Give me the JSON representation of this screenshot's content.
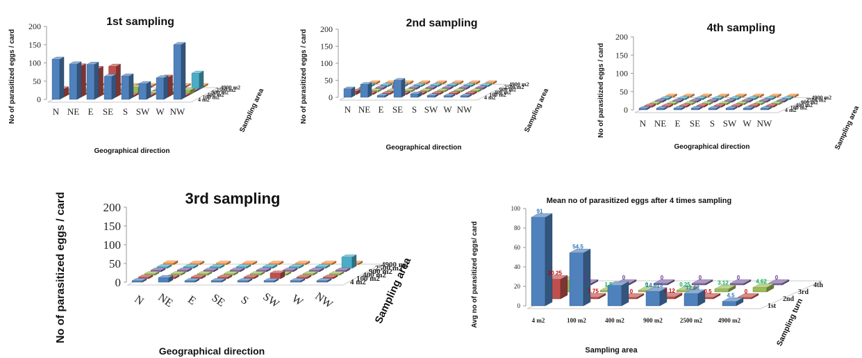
{
  "chart_data": [
    {
      "type": "bar",
      "title": "1st sampling",
      "ylabel": "No of parasitized eggs / card",
      "xlabel": "Geographical direction",
      "zlabel": "Sampling area",
      "ylim": [
        0,
        200
      ],
      "yticks": [
        "0",
        "50",
        "100",
        "150",
        "200"
      ],
      "categories": [
        "N",
        "NE",
        "E",
        "SE",
        "S",
        "SW",
        "W",
        "NW"
      ],
      "series": [
        {
          "name": "4 m2",
          "values": [
            110,
            97,
            96,
            63,
            64,
            43,
            59,
            150
          ]
        },
        {
          "name": "100 m2",
          "values": [
            22,
            85,
            78,
            84,
            3,
            4,
            54,
            3
          ]
        },
        {
          "name": "400 m2",
          "values": [
            0,
            0,
            0,
            0,
            20,
            0,
            8,
            12
          ]
        },
        {
          "name": "900 m2",
          "values": [
            0,
            0,
            0,
            0,
            18,
            0,
            0,
            0
          ]
        },
        {
          "name": "2500 m2",
          "values": [
            0,
            0,
            0,
            0,
            0,
            0,
            0,
            45
          ]
        },
        {
          "name": "4900 m2",
          "values": [
            0,
            0,
            0,
            0,
            0,
            0,
            0,
            0
          ]
        }
      ]
    },
    {
      "type": "bar",
      "title": "2nd sampling",
      "ylabel": "No of parasitized eggs / card",
      "xlabel": "Geographical direction",
      "zlabel": "Sampling area",
      "ylim": [
        0,
        200
      ],
      "yticks": [
        "0",
        "50",
        "100",
        "150",
        "200"
      ],
      "categories": [
        "N",
        "NE",
        "E",
        "SE",
        "S",
        "SW",
        "W",
        "NW"
      ],
      "series": [
        {
          "name": "4 m2",
          "values": [
            25,
            38,
            5,
            50,
            10,
            5,
            3,
            3
          ]
        },
        {
          "name": "100 m2",
          "values": [
            10,
            3,
            0,
            0,
            0,
            0,
            0,
            0
          ]
        },
        {
          "name": "400 m2",
          "values": [
            0,
            0,
            0,
            0,
            0,
            0,
            0,
            0
          ]
        },
        {
          "name": "900 m2",
          "values": [
            0,
            0,
            12,
            0,
            0,
            0,
            0,
            0
          ]
        },
        {
          "name": "2500 m2",
          "values": [
            0,
            0,
            0,
            0,
            0,
            0,
            0,
            0
          ]
        },
        {
          "name": "4900 m2",
          "values": [
            0,
            0,
            0,
            0,
            0,
            0,
            0,
            0
          ]
        }
      ]
    },
    {
      "type": "bar",
      "title": "4th sampling",
      "ylabel": "No of parasitized eggs / card",
      "xlabel": "Geographical direction",
      "zlabel": "Sampling area",
      "ylim": [
        0,
        200
      ],
      "yticks": [
        "0",
        "50",
        "100",
        "150",
        "200"
      ],
      "categories": [
        "N",
        "NE",
        "E",
        "SE",
        "S",
        "SW",
        "W",
        "NW"
      ],
      "series": [
        {
          "name": "4 m2",
          "values": [
            0,
            0,
            0,
            0,
            0,
            0,
            0,
            0
          ]
        },
        {
          "name": "100 m2",
          "values": [
            0,
            0,
            0,
            0,
            0,
            0,
            0,
            0
          ]
        },
        {
          "name": "400 m2",
          "values": [
            0,
            0,
            0,
            0,
            0,
            0,
            0,
            0
          ]
        },
        {
          "name": "900 m2",
          "values": [
            0,
            0,
            0,
            0,
            0,
            0,
            0,
            0
          ]
        },
        {
          "name": "2500 m2",
          "values": [
            0,
            0,
            0,
            0,
            0,
            0,
            0,
            0
          ]
        },
        {
          "name": "4900 m2",
          "values": [
            0,
            0,
            0,
            0,
            0,
            0,
            0,
            0
          ]
        }
      ]
    },
    {
      "type": "bar",
      "title": "3rd sampling",
      "ylabel": "No of parasitized eggs / card",
      "xlabel": "Geographical direction",
      "zlabel": "Sampling area",
      "ylim": [
        0,
        200
      ],
      "yticks": [
        "0",
        "50",
        "100",
        "150",
        "200"
      ],
      "categories": [
        "N",
        "NE",
        "E",
        "SE",
        "S",
        "SW",
        "W",
        "NW"
      ],
      "series": [
        {
          "name": "4 m2",
          "values": [
            2,
            12,
            2,
            2,
            2,
            4,
            2,
            2
          ]
        },
        {
          "name": "100 m2",
          "values": [
            0,
            0,
            0,
            0,
            0,
            15,
            0,
            0
          ]
        },
        {
          "name": "400 m2",
          "values": [
            0,
            0,
            0,
            0,
            0,
            0,
            0,
            0
          ]
        },
        {
          "name": "900 m2",
          "values": [
            0,
            0,
            0,
            0,
            0,
            0,
            0,
            0
          ]
        },
        {
          "name": "2500 m2",
          "values": [
            0,
            0,
            0,
            0,
            0,
            0,
            0,
            30
          ]
        },
        {
          "name": "4900 m2",
          "values": [
            5,
            2,
            4,
            2,
            0,
            0,
            0,
            0
          ]
        }
      ]
    },
    {
      "type": "bar",
      "title": "Mean no of parasitized eggs after 4 times sampling",
      "ylabel": "Avg no of parasitized eggs/ card",
      "xlabel": "Sampling area",
      "zlabel": "Sampling turn",
      "ylim": [
        0,
        100
      ],
      "yticks": [
        "0",
        "20",
        "40",
        "60",
        "80",
        "100"
      ],
      "categories": [
        "4 m2",
        "100 m2",
        "400 m2",
        "900 m2",
        "2500 m2",
        "4900 m2"
      ],
      "series": [
        {
          "name": "1st",
          "values": [
            91,
            54.5,
            21,
            14.875,
            12.63,
            4.5
          ],
          "labels": [
            "91",
            "54.5",
            "",
            "14.875",
            "12.63",
            "4.5"
          ]
        },
        {
          "name": "2nd",
          "values": [
            20.25,
            1.75,
            0,
            2.12,
            0.5,
            0
          ],
          "labels": [
            "20.25",
            "1.75",
            "0",
            "2.12",
            "0.5",
            "0"
          ]
        },
        {
          "name": "3rd",
          "values": [
            12,
            1.5,
            0,
            0.25,
            3.12,
            4.62
          ],
          "labels": [
            "",
            "1.5",
            "0",
            "0.25",
            "3.12",
            "4.62"
          ]
        },
        {
          "name": "4th",
          "values": [
            0,
            0,
            0,
            0,
            0,
            0
          ],
          "labels": [
            "0",
            "0",
            "0",
            "0",
            "0",
            "0"
          ]
        }
      ]
    }
  ],
  "colors": {
    "series6": [
      "#4f81bd",
      "#c0504d",
      "#9bbb59",
      "#8064a2",
      "#4bacc6",
      "#f79646"
    ],
    "series4": [
      "#4f81bd",
      "#c0504d",
      "#9bbb59",
      "#8064a2"
    ],
    "labels4": [
      "#2e75b6",
      "#c00000",
      "#00b050",
      "#7030a0"
    ]
  }
}
